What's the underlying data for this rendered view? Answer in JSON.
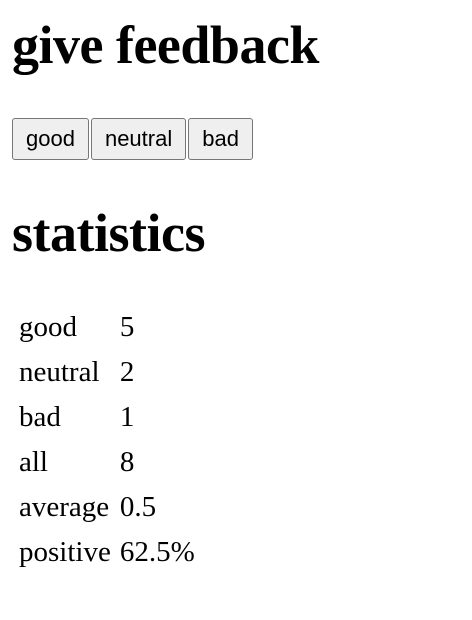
{
  "feedback": {
    "title": "give feedback",
    "buttons": {
      "good": "good",
      "neutral": "neutral",
      "bad": "bad"
    }
  },
  "statistics": {
    "title": "statistics",
    "rows": [
      {
        "label": "good",
        "value": "5"
      },
      {
        "label": "neutral",
        "value": "2"
      },
      {
        "label": "bad",
        "value": "1"
      },
      {
        "label": "all",
        "value": "8"
      },
      {
        "label": "average",
        "value": "0.5"
      },
      {
        "label": "positive",
        "value": "62.5%"
      }
    ]
  }
}
